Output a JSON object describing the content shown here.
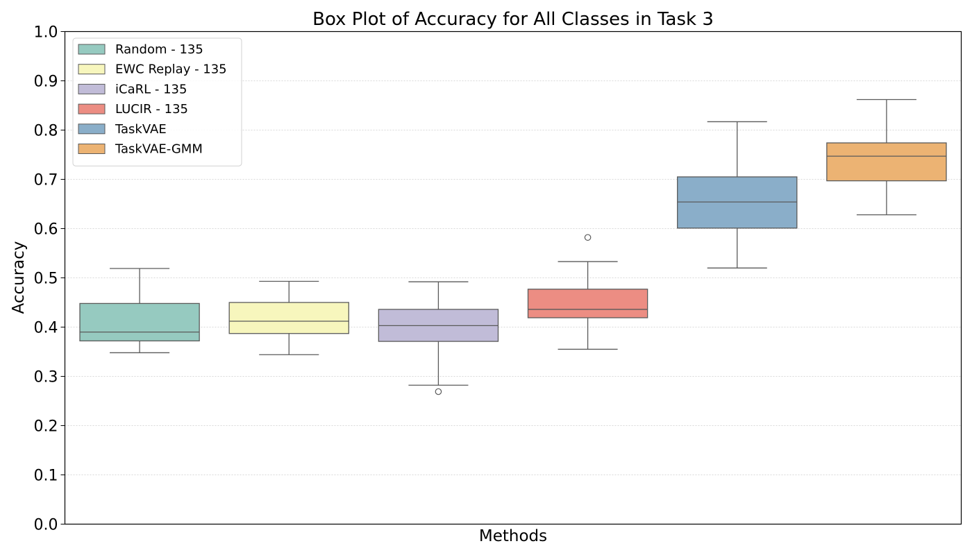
{
  "chart_data": {
    "type": "box",
    "title": "Box Plot of Accuracy for All Classes in Task 3",
    "xlabel": "Methods",
    "ylabel": "Accuracy",
    "ylim": [
      0.0,
      1.0
    ],
    "yticks": [
      "0.0",
      "0.1",
      "0.2",
      "0.3",
      "0.4",
      "0.5",
      "0.6",
      "0.7",
      "0.8",
      "0.9",
      "1.0"
    ],
    "grid": "horizontal dotted",
    "legend_position": "top-left",
    "series": [
      {
        "name": "Random - 135",
        "color": "#96cac0",
        "whislo": 0.348,
        "q1": 0.372,
        "med": 0.39,
        "q3": 0.448,
        "whishi": 0.519,
        "fliers": []
      },
      {
        "name": "EWC Replay - 135",
        "color": "#f7f6bd",
        "whislo": 0.344,
        "q1": 0.387,
        "med": 0.412,
        "q3": 0.45,
        "whishi": 0.493,
        "fliers": []
      },
      {
        "name": "iCaRL - 135",
        "color": "#c1bcd8",
        "whislo": 0.282,
        "q1": 0.371,
        "med": 0.403,
        "q3": 0.436,
        "whishi": 0.492,
        "fliers": [
          0.269
        ]
      },
      {
        "name": "LUCIR - 135",
        "color": "#ec8d83",
        "whislo": 0.355,
        "q1": 0.419,
        "med": 0.436,
        "q3": 0.477,
        "whishi": 0.533,
        "fliers": [
          0.582
        ]
      },
      {
        "name": "TaskVAE",
        "color": "#8aaec9",
        "whislo": 0.52,
        "q1": 0.601,
        "med": 0.654,
        "q3": 0.705,
        "whishi": 0.817,
        "fliers": []
      },
      {
        "name": "TaskVAE-GMM",
        "color": "#ecb373",
        "whislo": 0.628,
        "q1": 0.697,
        "med": 0.747,
        "q3": 0.774,
        "whishi": 0.862,
        "fliers": []
      }
    ]
  }
}
